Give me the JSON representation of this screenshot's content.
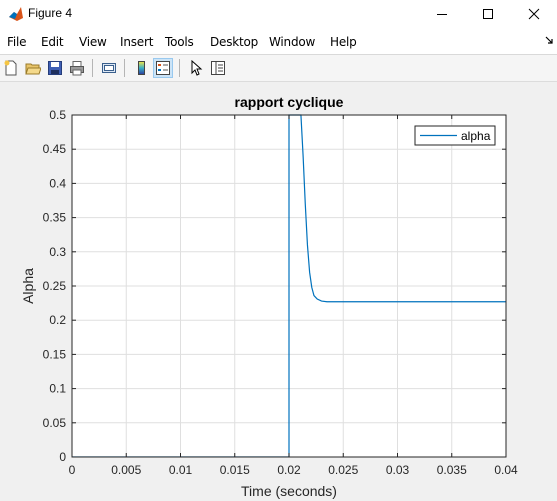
{
  "window": {
    "title": "Figure 4",
    "controls": [
      "minimize",
      "maximize",
      "close"
    ]
  },
  "menu": {
    "items": [
      "File",
      "Edit",
      "View",
      "Insert",
      "Tools",
      "Desktop",
      "Window",
      "Help"
    ]
  },
  "toolbar": {
    "buttons": [
      "new-figure-icon",
      "open-icon",
      "save-icon",
      "print-icon",
      "link-icon",
      "colorbar-icon",
      "legend-icon",
      "pointer-icon",
      "property-editor-icon"
    ],
    "active": "legend-icon"
  },
  "chart_data": {
    "type": "line",
    "title": "rapport cyclique",
    "xlabel": "Time (seconds)",
    "ylabel": "Alpha",
    "xlim": [
      0,
      0.04
    ],
    "ylim": [
      0,
      0.5
    ],
    "xticks": [
      "0",
      "0.005",
      "0.01",
      "0.015",
      "0.02",
      "0.025",
      "0.03",
      "0.035",
      "0.04"
    ],
    "yticks": [
      "0",
      "0.05",
      "0.1",
      "0.15",
      "0.2",
      "0.25",
      "0.3",
      "0.35",
      "0.4",
      "0.45",
      "0.5"
    ],
    "grid": true,
    "legend": "top-right",
    "series": [
      {
        "name": "alpha",
        "color": "#0072bd",
        "x": [
          0,
          0.02,
          0.02,
          0.0211,
          0.0213,
          0.0215,
          0.0217,
          0.0219,
          0.0221,
          0.0223,
          0.0226,
          0.023,
          0.0235,
          0.025,
          0.03,
          0.035,
          0.04
        ],
        "y": [
          0,
          0,
          0.5,
          0.5,
          0.44,
          0.37,
          0.31,
          0.27,
          0.248,
          0.236,
          0.231,
          0.228,
          0.227,
          0.227,
          0.227,
          0.227,
          0.227
        ]
      }
    ]
  }
}
